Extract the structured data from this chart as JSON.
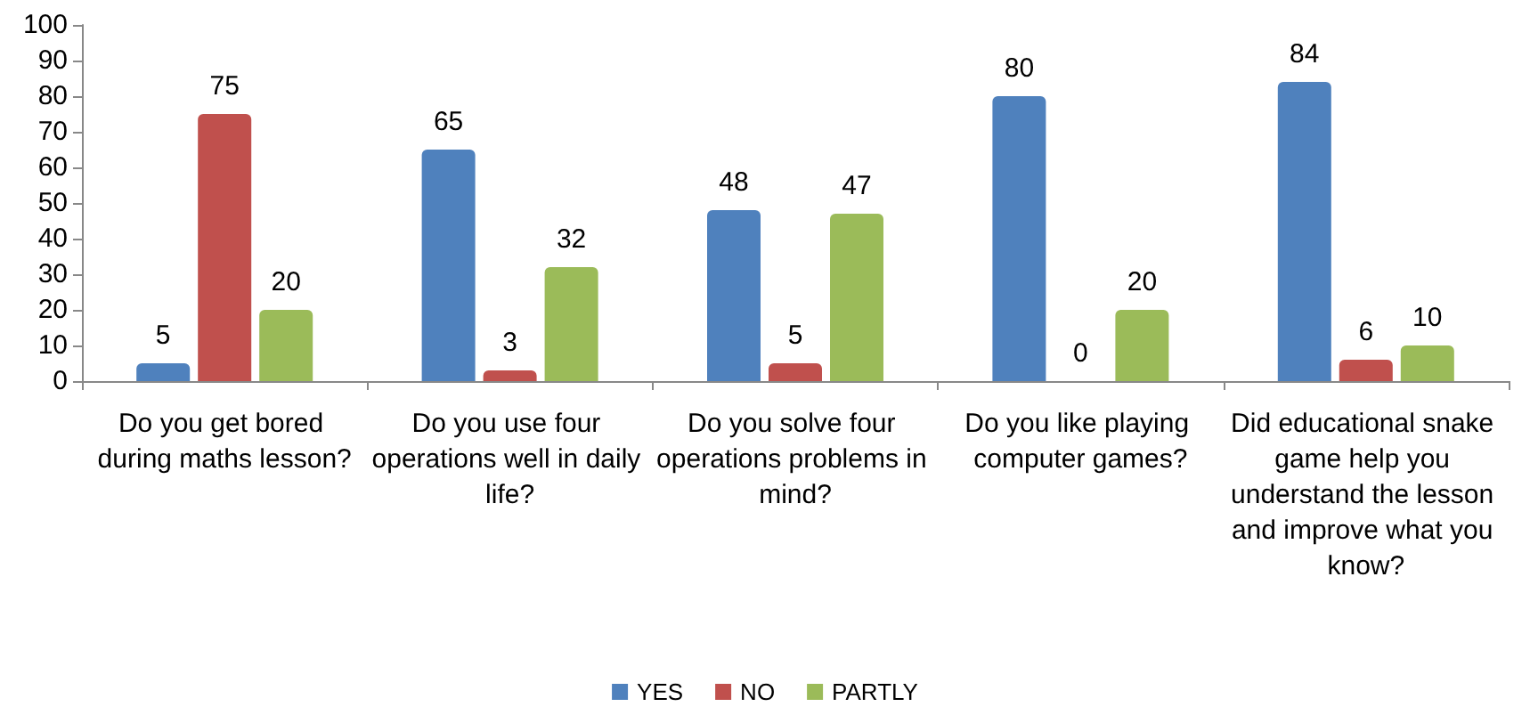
{
  "chart_data": {
    "type": "bar",
    "categories": [
      "Do you get bored during maths lesson?",
      "Do you use four operations well in daily life?",
      "Do you solve four operations problems in mind?",
      "Do you like playing computer games?",
      "Did educational snake game help you understand the lesson and improve what you know?"
    ],
    "series": [
      {
        "name": "YES",
        "color": "#4f81bd",
        "values": [
          5,
          65,
          48,
          80,
          84
        ]
      },
      {
        "name": "NO",
        "color": "#c0504d",
        "values": [
          75,
          3,
          5,
          0,
          6
        ]
      },
      {
        "name": "PARTLY",
        "color": "#9bbb59",
        "values": [
          20,
          32,
          47,
          20,
          10
        ]
      }
    ],
    "ylim": [
      0,
      100
    ],
    "yticks": [
      0,
      10,
      20,
      30,
      40,
      50,
      60,
      70,
      80,
      90,
      100
    ],
    "grid": false,
    "legend": "bottom",
    "data_labels": true
  }
}
